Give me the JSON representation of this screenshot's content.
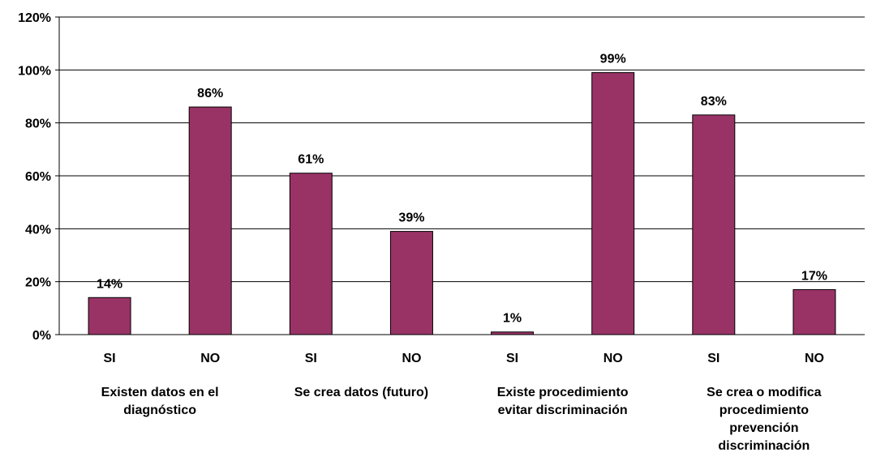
{
  "chart_data": {
    "type": "bar",
    "categories": [
      "SI",
      "NO",
      "SI",
      "NO",
      "SI",
      "NO",
      "SI",
      "NO"
    ],
    "values": [
      14,
      86,
      61,
      39,
      1,
      99,
      83,
      17
    ],
    "data_labels": [
      "14%",
      "86%",
      "61%",
      "39%",
      "1%",
      "99%",
      "83%",
      "17%"
    ],
    "groups": [
      {
        "label_lines": [
          "Existen datos en el",
          "diagnóstico"
        ]
      },
      {
        "label_lines": [
          "Se crea datos (futuro)"
        ]
      },
      {
        "label_lines": [
          "Existe procedimiento",
          "evitar discriminación"
        ]
      },
      {
        "label_lines": [
          "Se crea o modifica",
          "procedimiento",
          "prevención",
          "discriminación"
        ]
      }
    ],
    "yticks": [
      "0%",
      "20%",
      "40%",
      "60%",
      "80%",
      "100%",
      "120%"
    ],
    "ylim": [
      0,
      120
    ],
    "grid": true,
    "legend": "none",
    "bar_color": "#993366",
    "title": "",
    "xlabel": "",
    "ylabel": ""
  }
}
